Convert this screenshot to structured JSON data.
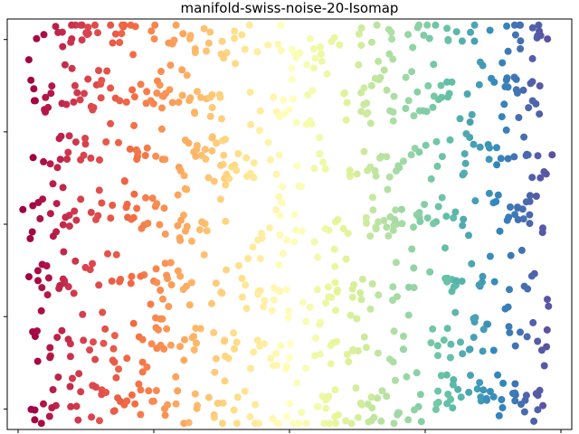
{
  "window": {
    "title": "manifold-swiss-noise-20-Isomap"
  },
  "chart_data": {
    "type": "scatter",
    "title": "manifold-swiss-noise-20-Isomap",
    "xlabel": "",
    "ylabel": "",
    "x_tick_labels_visible": false,
    "y_tick_labels_visible": false,
    "grid": false,
    "legend": "none",
    "colormap": "Spectral",
    "point_count_estimate": 1000,
    "xlim": [
      -52,
      52
    ],
    "ylim": [
      -20,
      20
    ],
    "x_ticks": [
      -50,
      -25,
      0,
      25,
      50
    ],
    "y_ticks": [
      -18,
      -9,
      0,
      9,
      18
    ],
    "bands_y": [
      18,
      12,
      6,
      0,
      -6,
      -12,
      -18
    ],
    "x_range_data": [
      -48,
      48
    ],
    "marker_size_estimate": 8
  }
}
